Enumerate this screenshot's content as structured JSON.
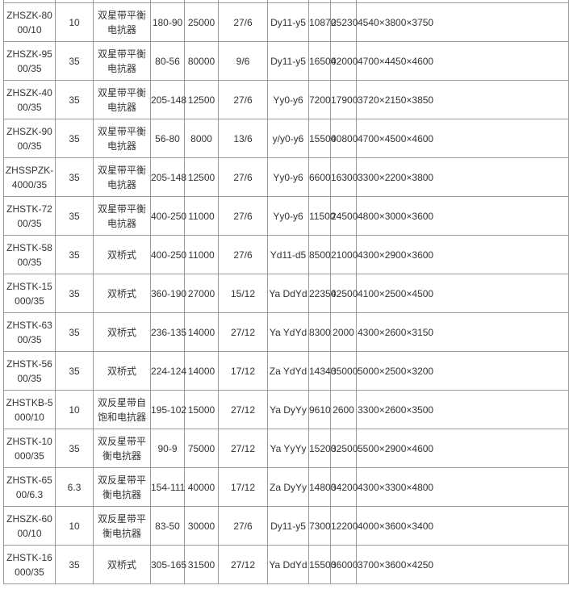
{
  "table": {
    "rows": [
      [
        "",
        "",
        "",
        "",
        "",
        "",
        "",
        "",
        "",
        ""
      ],
      [
        "ZHSZK-8000/10",
        "10",
        "双星带平衡电抗器",
        "180-90",
        "25000",
        "27/6",
        "Dy11-y5",
        "10870",
        "25230",
        "4540×3800×3750"
      ],
      [
        "ZHSZK-9500/35",
        "35",
        "双星带平衡电抗器",
        "80-56",
        "80000",
        "9/6",
        "Dy11-y5",
        "16500",
        "42000",
        "4700×4450×4600"
      ],
      [
        "ZHSZK-4000/35",
        "35",
        "双星带平衡电抗器",
        "205-148",
        "12500",
        "27/6",
        "Yy0-y6",
        "7200",
        "17900",
        "3720×2150×3850"
      ],
      [
        "ZHSZK-9000/35",
        "35",
        "双星带平衡电抗器",
        "56-80",
        "8000",
        "13/6",
        "y/y0-y6",
        "15500",
        "40800",
        "4700×4500×4600"
      ],
      [
        "ZHSSPZK-4000/35",
        "35",
        "双星带平衡电抗器",
        "205-148",
        "12500",
        "27/6",
        "Yy0-y6",
        "6600",
        "16300",
        "3300×2200×3800"
      ],
      [
        "ZHSTK-7200/35",
        "35",
        "双星带平衡电抗器",
        "400-250",
        "11000",
        "27/6",
        "Yy0-y6",
        "11500",
        "24500",
        "4800×3000×3600"
      ],
      [
        "ZHSTK-5800/35",
        "35",
        "双桥式",
        "400-250",
        "11000",
        "27/6",
        "Yd11-d5",
        "8500",
        "21000",
        "4300×2900×3600"
      ],
      [
        "ZHSTK-15000/35",
        "35",
        "双桥式",
        "360-190",
        "27000",
        "15/12",
        "Ya DdYd",
        "22350",
        "42500",
        "4100×2500×4500"
      ],
      [
        "ZHSTK-6300/35",
        "35",
        "双桥式",
        "236-135",
        "14000",
        "27/12",
        "Ya YdYd",
        "8300",
        "2000",
        "4300×2600×3150"
      ],
      [
        "ZHSTK-5600/35",
        "35",
        "双桥式",
        "224-124",
        "14000",
        "17/12",
        "Za YdYd",
        "14340",
        "35000",
        "5000×2500×3200"
      ],
      [
        "ZHSTKB-5000/10",
        "10",
        "双反星带自饱和电抗器",
        "195-102",
        "15000",
        "27/12",
        "Ya DyYy",
        "9610",
        "2600",
        "3300×2600×3500"
      ],
      [
        "ZHSTK-10000/35",
        "35",
        "双反星带平衡电抗器",
        "90-9",
        "75000",
        "27/12",
        "Ya YyYy",
        "15200",
        "32500",
        "5500×2900×4600"
      ],
      [
        "ZHSTK-6500/6.3",
        "6.3",
        "双反星带平衡电抗器",
        "154-111",
        "40000",
        "17/12",
        "Za DyYy",
        "14800",
        "34200",
        "4300×3300×4800"
      ],
      [
        "ZHSZK-6000/10",
        "10",
        "双反星带平衡电抗器",
        "83-50",
        "30000",
        "27/6",
        "Dy11-y5",
        "7300",
        "12200",
        "4000×3600×3400"
      ],
      [
        "ZHSTK-16000/35",
        "35",
        "双桥式",
        "305-165",
        "31500",
        "27/12",
        "Ya DdYd",
        "15500",
        "36000",
        "3700×3600×4250"
      ]
    ]
  }
}
